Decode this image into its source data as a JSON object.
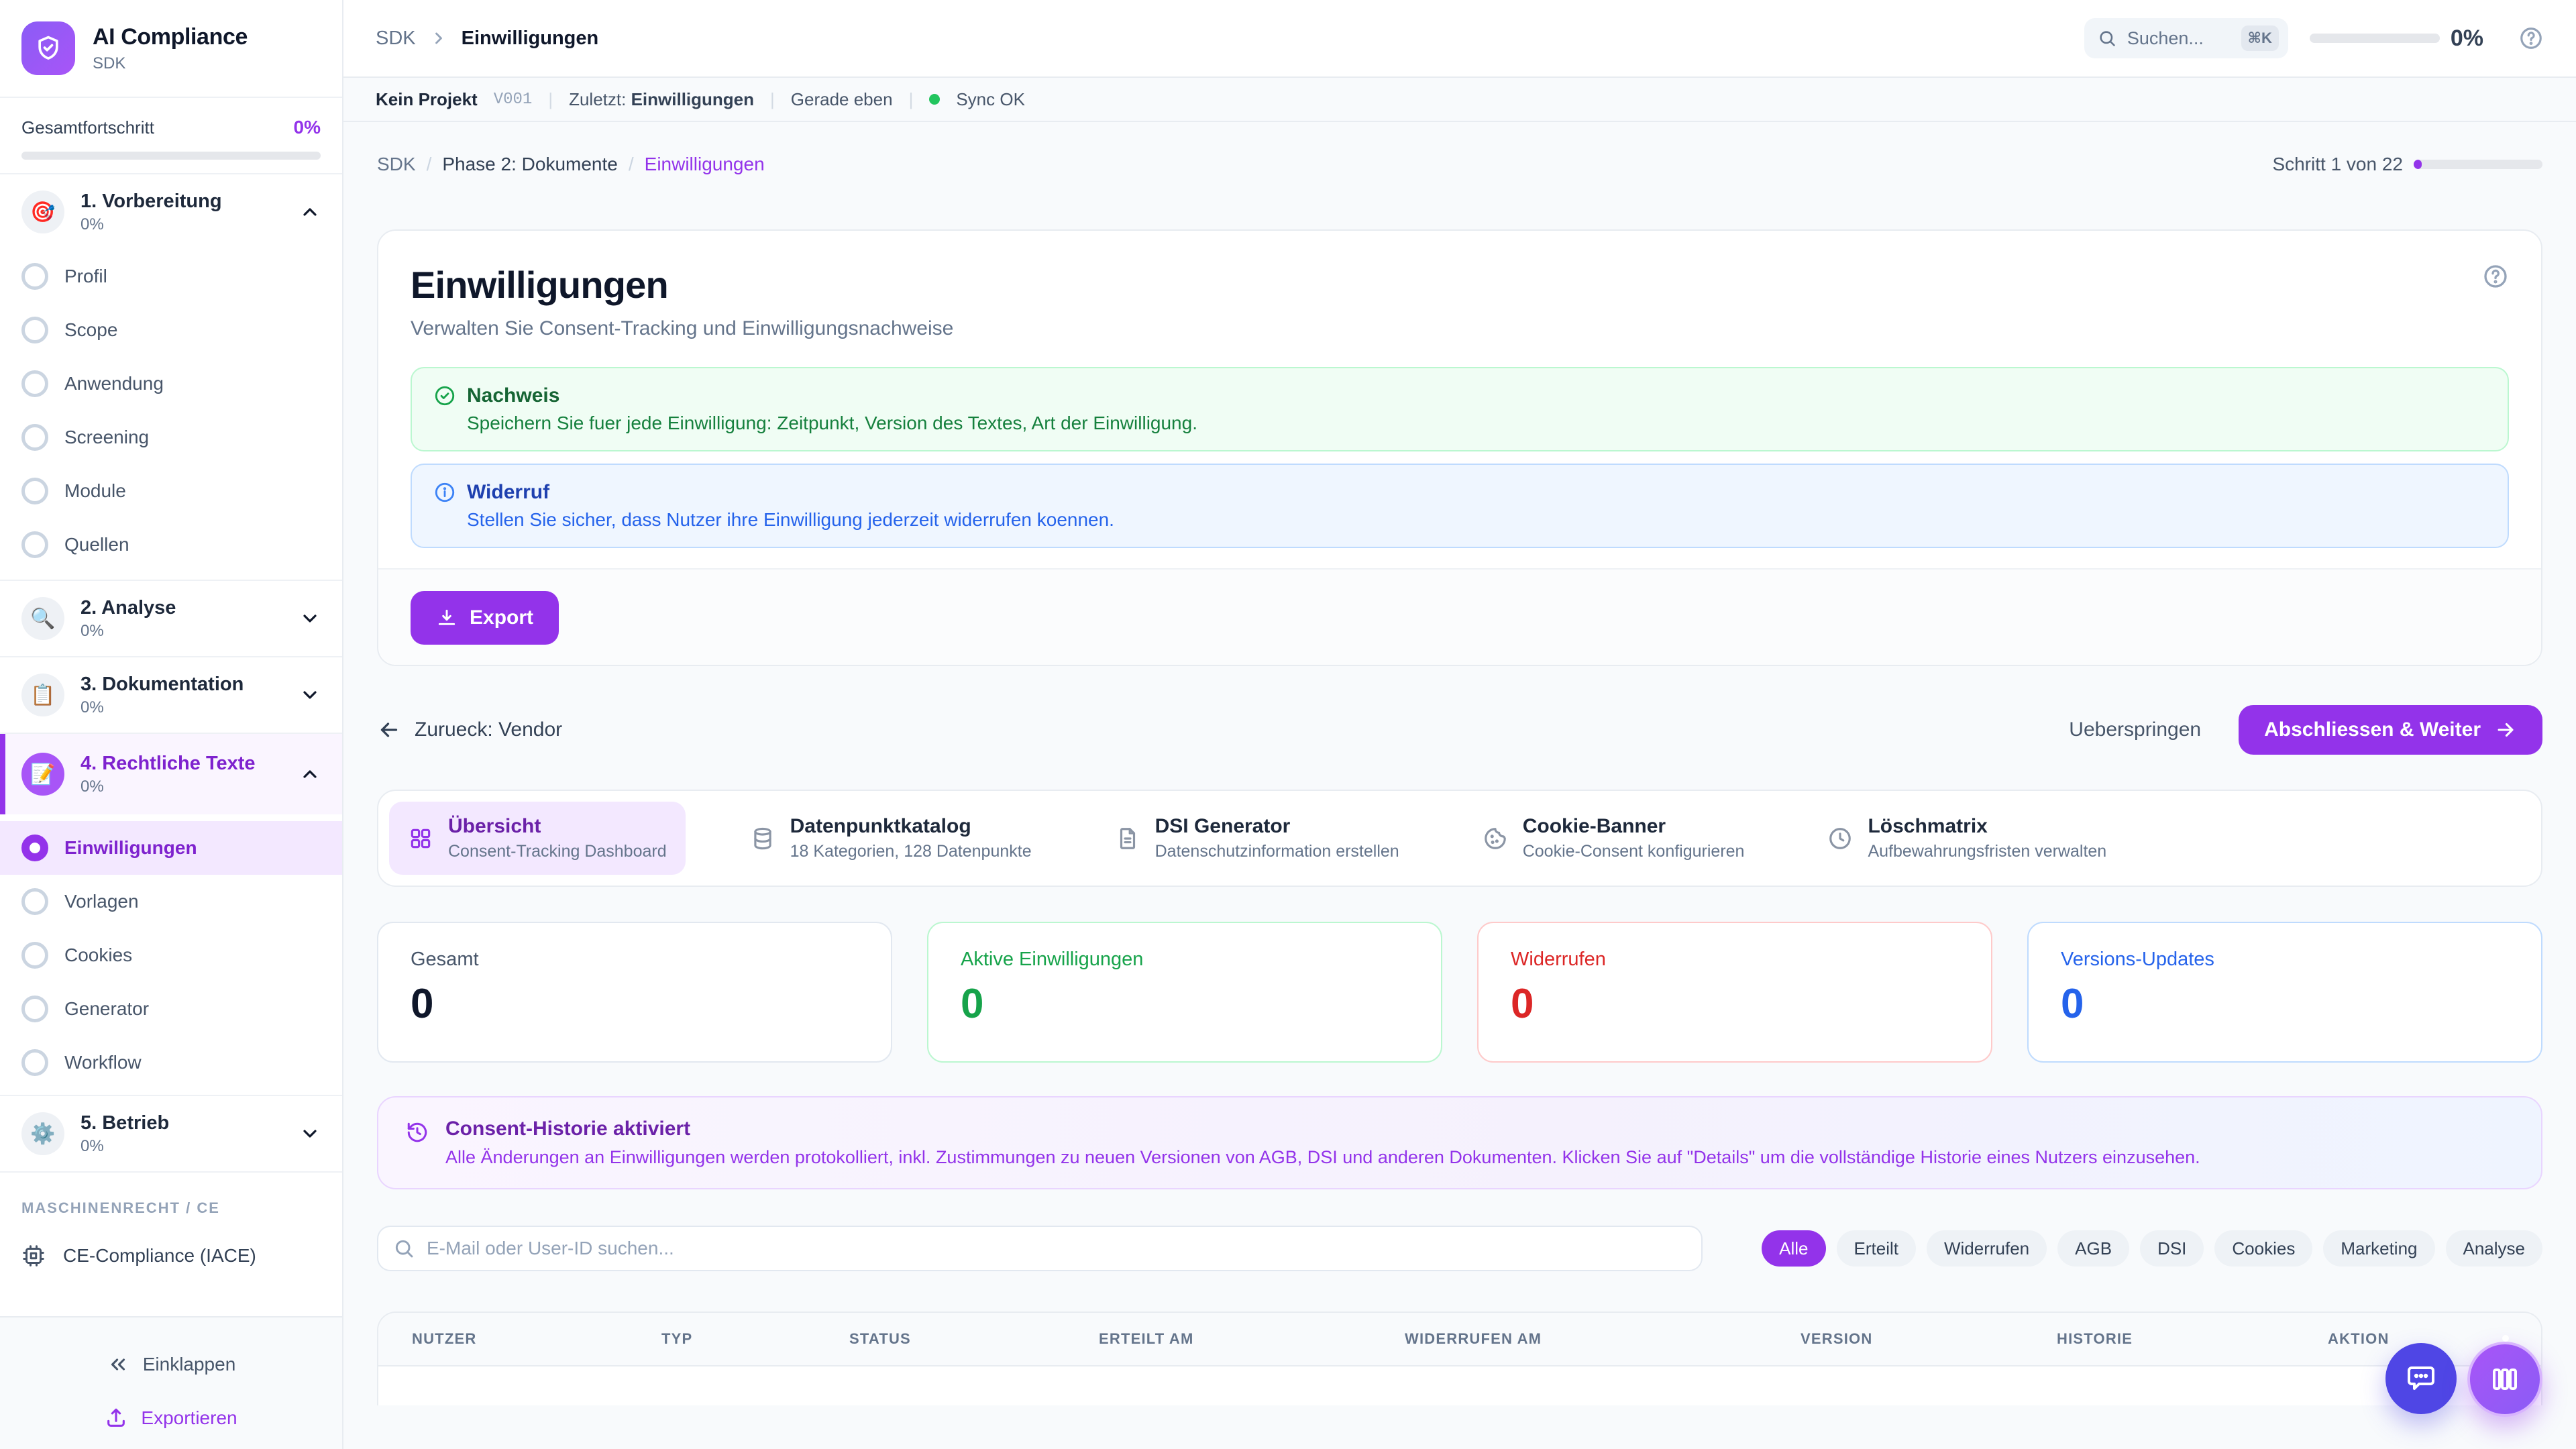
{
  "brand": {
    "title": "AI Compliance",
    "subtitle": "SDK"
  },
  "sidebar": {
    "progress_label": "Gesamtfortschritt",
    "progress_value": "0%",
    "sections": [
      {
        "title": "1. Vorbereitung",
        "pct": "0%",
        "emoji": "🎯"
      },
      {
        "title": "2. Analyse",
        "pct": "0%",
        "emoji": "🔍"
      },
      {
        "title": "3. Dokumentation",
        "pct": "0%",
        "emoji": "📋"
      },
      {
        "title": "4. Rechtliche Texte",
        "pct": "0%",
        "emoji": "📝"
      },
      {
        "title": "5. Betrieb",
        "pct": "0%",
        "emoji": "⚙️"
      }
    ],
    "section1_items": [
      {
        "label": "Profil",
        "state": "normal"
      },
      {
        "label": "Scope",
        "state": "normal"
      },
      {
        "label": "Anwendung",
        "state": "normal"
      },
      {
        "label": "Screening",
        "state": "normal"
      },
      {
        "label": "Module",
        "state": "normal"
      },
      {
        "label": "Quellen",
        "state": "normal"
      }
    ],
    "section4_items": [
      {
        "label": "Einwilligungen",
        "state": "active"
      },
      {
        "label": "Vorlagen",
        "state": "normal"
      },
      {
        "label": "Cookies",
        "state": "normal"
      },
      {
        "label": "Generator",
        "state": "normal"
      },
      {
        "label": "Workflow",
        "state": "normal"
      }
    ],
    "group_label": "MASCHINENRECHT / CE",
    "ce_item": "CE-Compliance (IACE)",
    "collapse_label": "Einklappen",
    "export_label": "Exportieren"
  },
  "topbar": {
    "crumb_root": "SDK",
    "crumb_current": "Einwilligungen",
    "search_placeholder": "Suchen...",
    "search_kbd": "⌘K",
    "progress_value": "0%"
  },
  "statusbar": {
    "project": "Kein Projekt",
    "version": "V001",
    "last_label": "Zuletzt:",
    "last_value": "Einwilligungen",
    "time": "Gerade eben",
    "sync": "Sync OK"
  },
  "breadcrumb": {
    "root": "SDK",
    "phase": "Phase 2: Dokumente",
    "current": "Einwilligungen",
    "step": "Schritt 1 von 22"
  },
  "page": {
    "title": "Einwilligungen",
    "subtitle": "Verwalten Sie Consent-Tracking und Einwilligungsnachweise",
    "callouts": [
      {
        "variant": "green",
        "icon": "check-circle",
        "title": "Nachweis",
        "text": "Speichern Sie fuer jede Einwilligung: Zeitpunkt, Version des Textes, Art der Einwilligung."
      },
      {
        "variant": "blue",
        "icon": "info-circle",
        "title": "Widerruf",
        "text": "Stellen Sie sicher, dass Nutzer ihre Einwilligung jederzeit widerrufen koennen."
      }
    ],
    "export_label": "Export"
  },
  "nav_row": {
    "back": "Zurueck: Vendor",
    "skip": "Ueberspringen",
    "next": "Abschliessen & Weiter"
  },
  "tabs": [
    {
      "title": "Übersicht",
      "subtitle": "Consent-Tracking Dashboard",
      "icon": "grid",
      "state": "active"
    },
    {
      "title": "Datenpunktkatalog",
      "subtitle": "18 Kategorien, 128 Datenpunkte",
      "icon": "database",
      "state": "normal"
    },
    {
      "title": "DSI Generator",
      "subtitle": "Datenschutzinformation erstellen",
      "icon": "file-text",
      "state": "normal"
    },
    {
      "title": "Cookie-Banner",
      "subtitle": "Cookie-Consent konfigurieren",
      "icon": "cookie",
      "state": "normal"
    },
    {
      "title": "Löschmatrix",
      "subtitle": "Aufbewahrungsfristen verwalten",
      "icon": "clock",
      "state": "normal"
    }
  ],
  "stats": [
    {
      "label": "Gesamt",
      "value": "0",
      "variant": "dark"
    },
    {
      "label": "Aktive Einwilligungen",
      "value": "0",
      "variant": "green"
    },
    {
      "label": "Widerrufen",
      "value": "0",
      "variant": "red"
    },
    {
      "label": "Versions-Updates",
      "value": "0",
      "variant": "blue"
    }
  ],
  "history_note": {
    "title": "Consent-Historie aktiviert",
    "text": "Alle Änderungen an Einwilligungen werden protokolliert, inkl. Zustimmungen zu neuen Versionen von AGB, DSI und anderen Dokumenten. Klicken Sie auf \"Details\" um die vollständige Historie eines Nutzers einzusehen."
  },
  "filter": {
    "search_placeholder": "E-Mail oder User-ID suchen...",
    "pills": [
      {
        "label": "Alle",
        "state": "active"
      },
      {
        "label": "Erteilt",
        "state": "normal"
      },
      {
        "label": "Widerrufen",
        "state": "normal"
      },
      {
        "label": "AGB",
        "state": "normal"
      },
      {
        "label": "DSI",
        "state": "normal"
      },
      {
        "label": "Cookies",
        "state": "normal"
      },
      {
        "label": "Marketing",
        "state": "normal"
      },
      {
        "label": "Analyse",
        "state": "normal"
      }
    ]
  },
  "table": {
    "columns": [
      "NUTZER",
      "TYP",
      "STATUS",
      "ERTEILT AM",
      "WIDERRUFEN AM",
      "VERSION",
      "HISTORIE",
      "AKTION"
    ]
  },
  "colors": {
    "accent": "#9333ea",
    "green": "#16a34a",
    "red": "#dc2626",
    "blue": "#2563eb",
    "indigo": "#4f46e5"
  }
}
